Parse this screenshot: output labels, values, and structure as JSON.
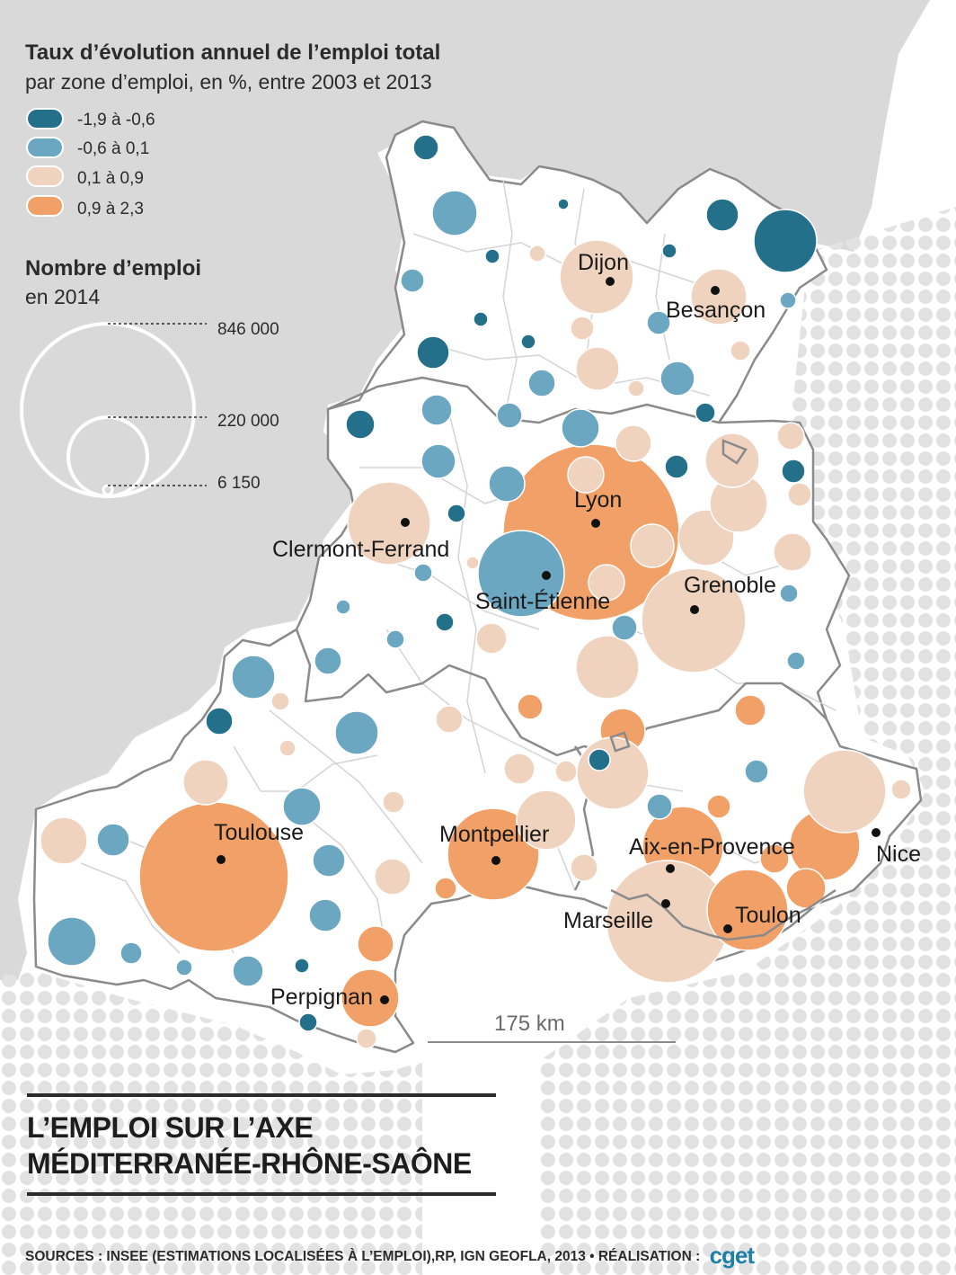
{
  "legend": {
    "title": "Taux d’évolution annuel de l’emploi total",
    "subtitle": "par zone d’emploi, en %, entre 2003 et 2013",
    "classes": [
      {
        "label": "-1,9 à -0,6",
        "color": "#24708a"
      },
      {
        "label": "-0,6 à 0,1",
        "color": "#6ca7c2"
      },
      {
        "label": "0,1 à 0,9",
        "color": "#efd3bf"
      },
      {
        "label": "0,9 à 2,3",
        "color": "#f1a168"
      }
    ],
    "size_title": "Nombre d’emploi",
    "size_subtitle": "en 2014",
    "size_values": [
      "846 000",
      "220 000",
      "6 150"
    ]
  },
  "cities": [
    "Dijon",
    "Besançon",
    "Lyon",
    "Clermont-Ferrand",
    "Saint-Étienne",
    "Grenoble",
    "Toulouse",
    "Montpellier",
    "Aix-en-Provence",
    "Nice",
    "Marseille",
    "Toulon",
    "Perpignan"
  ],
  "scale_bar": "175 km",
  "title_line1": "L’EMPLOI SUR L’AXE",
  "title_line2": "MÉDITERRANÉE-RHÔNE-SAÔNE",
  "sources": "SOURCES : INSEE (ESTIMATIONS LOCALISÉES À L’EMPLOI),RP, IGN GEOFLA, 2013 • RÉALISATION :",
  "logo": "cget"
}
